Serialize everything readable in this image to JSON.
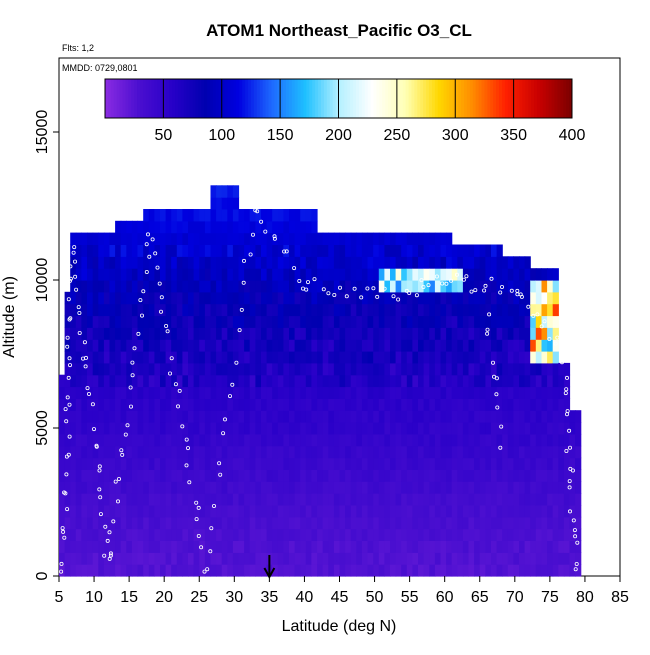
{
  "chart_data": {
    "type": "heatmap",
    "title": "ATOM1 Northeast_Pacific O3_CL",
    "flights_label": "Flts: 1,2",
    "dates_label": "MMDD: 0729,0801",
    "xlabel": "Latitude (deg N)",
    "ylabel": "Altitude (m)",
    "xlim": [
      5,
      85
    ],
    "ylim": [
      0,
      17500
    ],
    "x_ticks": [
      "5",
      "10",
      "15",
      "20",
      "25",
      "30",
      "35",
      "40",
      "45",
      "50",
      "55",
      "60",
      "65",
      "70",
      "75",
      "80",
      "85"
    ],
    "y_ticks": [
      "0",
      "5000",
      "10000",
      "15000"
    ],
    "colorbar": {
      "min": 0,
      "max": 400,
      "ticks": [
        "50",
        "100",
        "150",
        "200",
        "250",
        "300",
        "350",
        "400"
      ],
      "colors": [
        "#8a2be2",
        "#4b0fd0",
        "#2800c8",
        "#0000b0",
        "#0000e0",
        "#1e6aff",
        "#1ec0ff",
        "#b4f0ff",
        "#ffffff",
        "#ffffb4",
        "#ffd700",
        "#ff8c00",
        "#ff2000",
        "#c80000",
        "#7a0000"
      ]
    },
    "field_profile": {
      "altitude_m": [
        0,
        1000,
        2000,
        3000,
        4000,
        5000,
        6000,
        7000,
        8000,
        9000,
        10000,
        11000,
        12000,
        13000
      ],
      "o3_ppbv": [
        25,
        28,
        32,
        38,
        44,
        50,
        55,
        60,
        68,
        78,
        88,
        100,
        115,
        120
      ]
    },
    "hotspot_o3_ppbv": [
      250,
      280,
      320,
      360,
      400
    ],
    "arrow_marker_latitude": 35
  }
}
